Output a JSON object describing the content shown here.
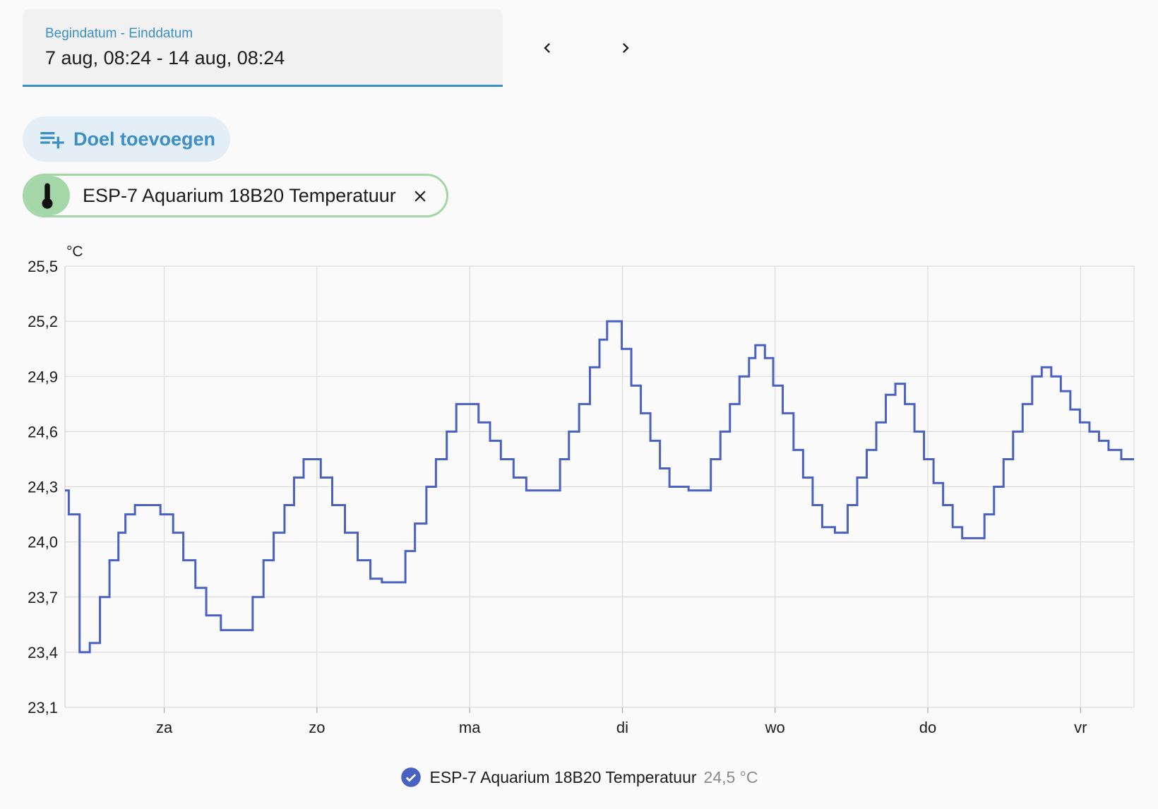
{
  "date_range": {
    "label": "Begindatum - Einddatum",
    "value": "7 aug, 08:24 - 14 aug, 08:24"
  },
  "nav": {
    "prev_icon": "chevron-left-icon",
    "next_icon": "chevron-right-icon"
  },
  "add_target": {
    "label": "Doel toevoegen",
    "icon": "playlist-plus-icon"
  },
  "chip": {
    "label": "ESP-7 Aquarium 18B20 Temperatuur",
    "icon": "thermometer-icon",
    "close_icon": "close-icon",
    "color": "#a5d6a7"
  },
  "legend": {
    "name": "ESP-7 Aquarium 18B20 Temperatuur",
    "value": "24,5 °C",
    "icon": "check-circle-icon",
    "color": "#4a61c4"
  },
  "colors": {
    "accent": "#3b8fc4",
    "series": "#4a61c4",
    "grid": "#dddddd"
  },
  "chart_data": {
    "type": "line",
    "step": true,
    "ylabel": "°C",
    "ylim": [
      23.1,
      25.5
    ],
    "yticks": [
      "25,5",
      "25,2",
      "24,9",
      "24,6",
      "24,3",
      "24,0",
      "23,7",
      "23,4",
      "23,1"
    ],
    "xlim_hours": [
      0,
      168
    ],
    "xtick_labels": [
      "za",
      "zo",
      "ma",
      "di",
      "wo",
      "do",
      "vr"
    ],
    "xtick_hours": [
      15.6,
      39.6,
      63.6,
      87.6,
      111.6,
      135.6,
      159.6
    ],
    "grid": true,
    "series": [
      {
        "name": "ESP-7 Aquarium 18B20 Temperatuur",
        "points": [
          [
            0.0,
            24.28
          ],
          [
            0.6,
            24.15
          ],
          [
            2.3,
            23.4
          ],
          [
            3.9,
            23.45
          ],
          [
            5.5,
            23.7
          ],
          [
            7.0,
            23.9
          ],
          [
            8.4,
            24.05
          ],
          [
            9.5,
            24.15
          ],
          [
            11.0,
            24.2
          ],
          [
            13.2,
            24.2
          ],
          [
            15.0,
            24.15
          ],
          [
            17.0,
            24.05
          ],
          [
            18.6,
            23.9
          ],
          [
            20.5,
            23.75
          ],
          [
            22.2,
            23.6
          ],
          [
            24.5,
            23.52
          ],
          [
            28.0,
            23.52
          ],
          [
            29.5,
            23.7
          ],
          [
            31.2,
            23.9
          ],
          [
            32.8,
            24.05
          ],
          [
            34.5,
            24.2
          ],
          [
            36.0,
            24.35
          ],
          [
            37.5,
            24.45
          ],
          [
            39.0,
            24.45
          ],
          [
            40.2,
            24.35
          ],
          [
            42.0,
            24.2
          ],
          [
            44.0,
            24.05
          ],
          [
            46.0,
            23.9
          ],
          [
            48.0,
            23.8
          ],
          [
            49.8,
            23.78
          ],
          [
            52.2,
            23.78
          ],
          [
            53.5,
            23.95
          ],
          [
            55.0,
            24.1
          ],
          [
            56.8,
            24.3
          ],
          [
            58.3,
            24.45
          ],
          [
            60.0,
            24.6
          ],
          [
            61.5,
            24.75
          ],
          [
            63.5,
            24.75
          ],
          [
            65.0,
            24.65
          ],
          [
            66.8,
            24.55
          ],
          [
            68.5,
            24.45
          ],
          [
            70.5,
            24.35
          ],
          [
            72.5,
            24.28
          ],
          [
            76.5,
            24.28
          ],
          [
            77.8,
            24.45
          ],
          [
            79.2,
            24.6
          ],
          [
            80.8,
            24.75
          ],
          [
            82.5,
            24.95
          ],
          [
            84.0,
            25.1
          ],
          [
            85.2,
            25.2
          ],
          [
            86.5,
            25.2
          ],
          [
            87.5,
            25.05
          ],
          [
            89.0,
            24.85
          ],
          [
            90.5,
            24.7
          ],
          [
            92.0,
            24.55
          ],
          [
            93.5,
            24.4
          ],
          [
            95.0,
            24.3
          ],
          [
            98.0,
            24.28
          ],
          [
            100.0,
            24.28
          ],
          [
            101.5,
            24.45
          ],
          [
            103.0,
            24.6
          ],
          [
            104.5,
            24.75
          ],
          [
            106.0,
            24.9
          ],
          [
            107.5,
            25.0
          ],
          [
            108.5,
            25.07
          ],
          [
            110.0,
            25.0
          ],
          [
            111.3,
            24.85
          ],
          [
            112.8,
            24.7
          ],
          [
            114.5,
            24.5
          ],
          [
            116.0,
            24.35
          ],
          [
            117.5,
            24.2
          ],
          [
            119.0,
            24.08
          ],
          [
            121.0,
            24.05
          ],
          [
            122.0,
            24.05
          ],
          [
            123.0,
            24.2
          ],
          [
            124.5,
            24.35
          ],
          [
            126.0,
            24.5
          ],
          [
            127.5,
            24.65
          ],
          [
            129.0,
            24.8
          ],
          [
            130.5,
            24.86
          ],
          [
            132.0,
            24.75
          ],
          [
            133.5,
            24.6
          ],
          [
            135.0,
            24.45
          ],
          [
            136.5,
            24.32
          ],
          [
            138.0,
            24.2
          ],
          [
            139.5,
            24.08
          ],
          [
            141.0,
            24.02
          ],
          [
            143.5,
            24.02
          ],
          [
            144.5,
            24.15
          ],
          [
            146.0,
            24.3
          ],
          [
            147.5,
            24.45
          ],
          [
            149.0,
            24.6
          ],
          [
            150.5,
            24.75
          ],
          [
            152.0,
            24.9
          ],
          [
            153.5,
            24.95
          ],
          [
            155.0,
            24.9
          ],
          [
            156.5,
            24.82
          ],
          [
            158.0,
            24.72
          ],
          [
            159.5,
            24.65
          ],
          [
            161.0,
            24.6
          ],
          [
            162.5,
            24.55
          ],
          [
            164.0,
            24.5
          ],
          [
            166.0,
            24.45
          ],
          [
            168.0,
            24.45
          ]
        ]
      }
    ]
  }
}
